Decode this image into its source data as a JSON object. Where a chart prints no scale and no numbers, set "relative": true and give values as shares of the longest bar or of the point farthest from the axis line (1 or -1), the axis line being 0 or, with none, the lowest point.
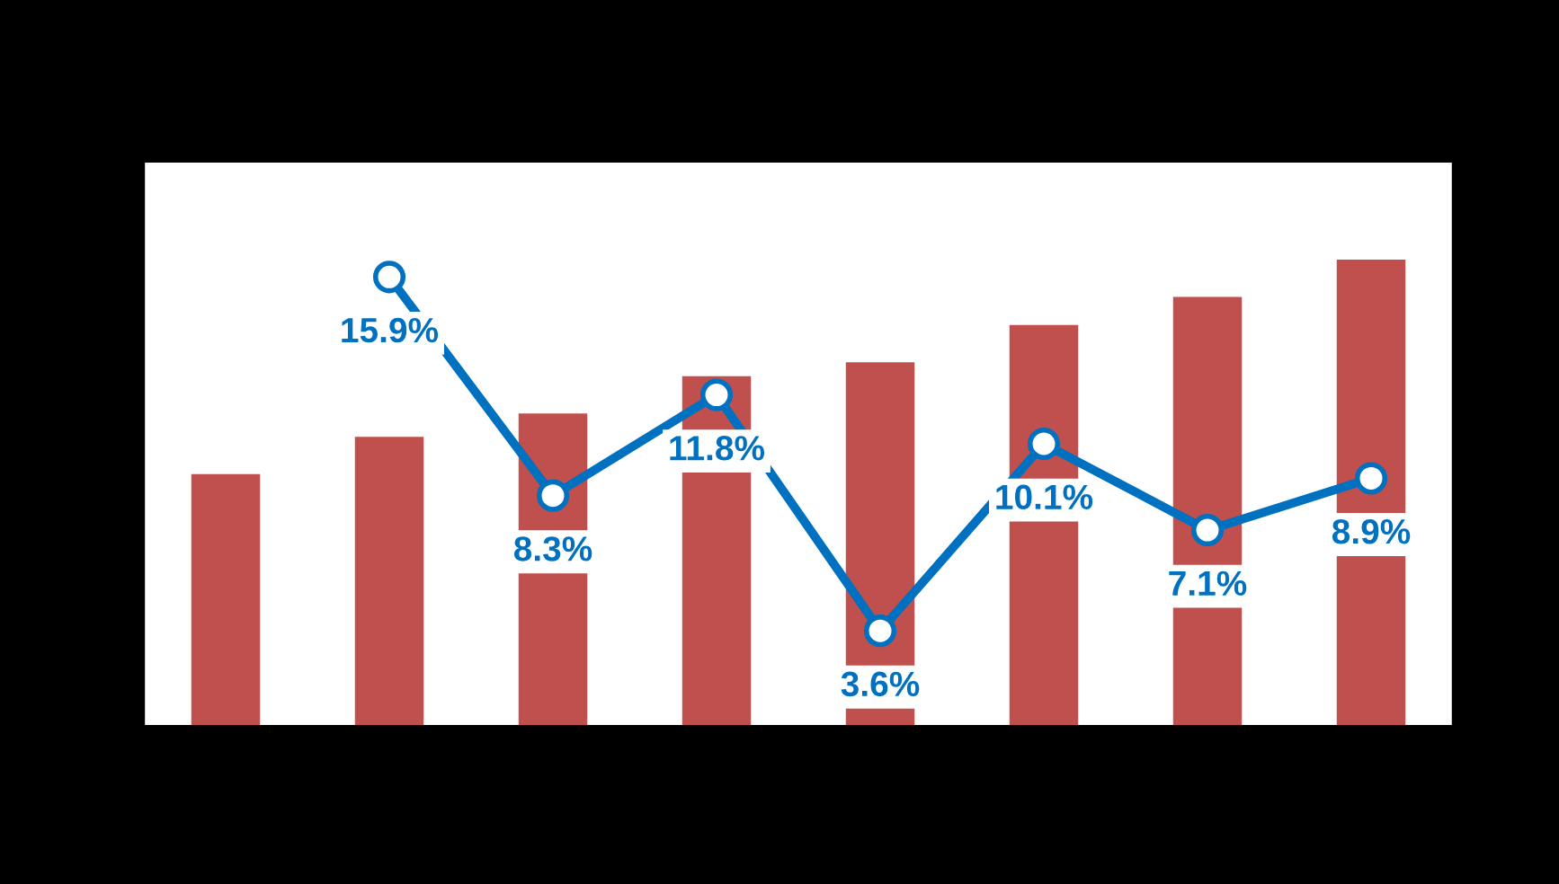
{
  "chart_data": [
    {
      "type": "bar",
      "relative": true,
      "categories": [
        null,
        null,
        null,
        null,
        null,
        null,
        null,
        null
      ],
      "series": [
        {
          "color": "#c0504d",
          "values": [
            0.54,
            0.62,
            0.67,
            0.75,
            0.78,
            0.86,
            0.92,
            1.0
          ]
        }
      ],
      "grid": false
    },
    {
      "type": "line",
      "categories": [
        null,
        null,
        null,
        null,
        null,
        null,
        null,
        null
      ],
      "series": [
        {
          "color": "#0070c0",
          "values": [
            null,
            15.9,
            8.3,
            11.8,
            3.6,
            10.1,
            7.1,
            8.9
          ],
          "value_labels": [
            null,
            "15.9%",
            "8.3%",
            "11.8%",
            "3.6%",
            "10.1%",
            "7.1%",
            "8.9%"
          ]
        }
      ],
      "marker": "circle",
      "line_style": "solid",
      "grid": false
    }
  ]
}
